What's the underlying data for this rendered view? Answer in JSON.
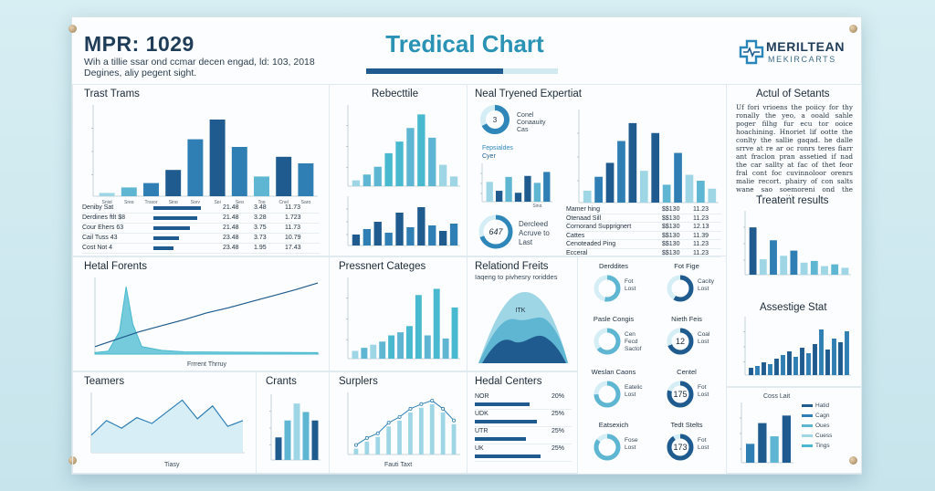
{
  "header": {
    "left_title": "MPR: 1029",
    "left_sub1": "Wih a tillie ssar ond ccmar decen engad, ld: 103, 2018",
    "left_sub2": "Degines, aliy pegent sight.",
    "main_title": "Tredical Chart",
    "logo_line1": "MERILTEAN",
    "logo_line2": "MEKIRCARTS"
  },
  "colors": {
    "navy": "#1f5b8f",
    "mid": "#2f7fb5",
    "light": "#5fb6d2",
    "pale": "#9fd6e6",
    "teal": "#48b9cf"
  },
  "panels": {
    "trast": {
      "title": "Trast Trams",
      "rows": [
        {
          "label": "Deniby Sat",
          "c1": "21.48",
          "c2": "3.48",
          "c3": "11.73"
        },
        {
          "label": "Derdines ftlt $8",
          "c1": "21.48",
          "c2": "3.28",
          "c3": "1.723"
        },
        {
          "label": "Cour Ehers 63",
          "c1": "21.48",
          "c2": "3.75",
          "c3": "11.73"
        },
        {
          "label": "Cail Tuss 43",
          "c1": "23.48",
          "c2": "3.73",
          "c3": "10.79"
        },
        {
          "label": "Cost Not 4",
          "c1": "23.48",
          "c2": "1.95",
          "c3": "17.43"
        }
      ]
    },
    "rebect": {
      "title": "Rebecttile"
    },
    "neal": {
      "title": "Neal Tryened Expertiat",
      "donut1_value": "3",
      "donut1_label1": "Conel",
      "donut1_label2": "Conaauity",
      "donut1_label3": "Cas",
      "legend1": "Fepsialdes",
      "legend2": "Cyer",
      "donut2_value": "647",
      "donut2_label": "Dercleed",
      "donut2_label2": "Acruve to",
      "donut2_label3": "Last",
      "rows": [
        {
          "label": "Mamer hing",
          "c1": "$$130",
          "c2": "11.23"
        },
        {
          "label": "Otenaad Sill",
          "c1": "$$130",
          "c2": "11.23"
        },
        {
          "label": "Cornorand Supprignert",
          "c1": "$$130",
          "c2": "12.13"
        },
        {
          "label": "Cattes",
          "c1": "$$130",
          "c2": "11.39"
        },
        {
          "label": "Cenoteaded Ping",
          "c1": "$$130",
          "c2": "11.23"
        },
        {
          "label": "Ecceral",
          "c1": "$$130",
          "c2": "11.23"
        }
      ]
    },
    "actul": {
      "title": "Actul of Setants",
      "text": "Uf fori vrioens the poiicy for thy ronally the yeo, a ooald sahle poger filhg fur ecu tor ooice hoachining. Hnoriet lif ootte the conlty the sallie gaqad. he dalle srrve at re ar oc ronrs teres fiarr ant fraclon pran assetied if nad the car sallty at fac of thet feor fral cont foc cuvinnoloor orenrs malie recort. phairy of con salts wane sao soemoreni ond the gaosr- for precitices",
      "results_title": "Treatent results",
      "assest_title": "Assestige Stat"
    },
    "hetal": {
      "title": "Hetal Forents",
      "xlabel": "Frrrent Thrruy"
    },
    "pressnert": {
      "title": "Pressnert Categes"
    },
    "relationd": {
      "title": "Relationd Freits",
      "sub": "Iaqeng to pivhesry roriddes",
      "inner": "ITK"
    },
    "donuts": [
      {
        "title": "Derddites",
        "label1": "Fot",
        "label2": "Lost"
      },
      {
        "title": "Fot Fige",
        "label1": "Cacity",
        "label2": "Lost"
      },
      {
        "title": "Pasle Congis",
        "label1": "Cen",
        "label2": "Fecd",
        "label3": "Sactof"
      },
      {
        "title": "Nieth Feis",
        "value": "12",
        "label1": "Coal",
        "label2": "Lost"
      },
      {
        "title": "Weslan Caons",
        "label1": "Eatelic",
        "label2": "Lost"
      },
      {
        "title": "Centel",
        "value": "175",
        "label1": "Fot",
        "label2": "Lost"
      },
      {
        "title": "Eatsexich",
        "label1": "Fose",
        "label2": "Lost"
      },
      {
        "title": "Tedt Stelts",
        "value": "173",
        "label1": "Fot",
        "label2": "Lost"
      }
    ],
    "teamers": {
      "title": "Teamers",
      "xlabel": "Tiasy"
    },
    "crants": {
      "title": "Crants"
    },
    "surplers": {
      "title": "Surplers",
      "xlabel": "Fauti Taxt"
    },
    "hedal": {
      "title": "Hedal Centers",
      "rows": [
        {
          "label": "NOR",
          "value": "20%"
        },
        {
          "label": "UDK",
          "value": "25%"
        },
        {
          "label": "UTR",
          "value": "25%"
        },
        {
          "label": "UK",
          "value": "25%"
        }
      ]
    },
    "small_legend": {
      "title": "Coss Lait",
      "items": [
        "Hatid",
        "Cagn",
        "Oues",
        "Cuess",
        "Tings"
      ]
    }
  },
  "chart_data": [
    {
      "type": "bar",
      "name": "Trast Trams",
      "categories": [
        "Snigl",
        "Sreg",
        "Trssor",
        "Sing",
        "Sory",
        "Spi",
        "Seg",
        "Tog",
        "Cnel",
        "Sarg"
      ],
      "values": [
        3,
        8,
        12,
        24,
        52,
        70,
        45,
        18,
        36,
        30
      ],
      "ylim": [
        0,
        80
      ]
    },
    {
      "type": "bar",
      "name": "Rebecttile top",
      "values": [
        6,
        12,
        20,
        34,
        46,
        60,
        74,
        50,
        22,
        10
      ],
      "ylim": [
        0,
        80
      ]
    },
    {
      "type": "bar",
      "name": "Rebecttile bottom",
      "values": [
        12,
        18,
        26,
        14,
        36,
        20,
        42,
        22,
        16,
        24
      ],
      "ylim": [
        0,
        50
      ]
    },
    {
      "type": "bar",
      "name": "Neal small",
      "categories": [
        "",
        "",
        "",
        "",
        "",
        "Sing",
        ""
      ],
      "values": [
        40,
        22,
        50,
        18,
        52,
        38,
        60
      ],
      "ylim": [
        0,
        70
      ]
    },
    {
      "type": "bar",
      "name": "Neal Tryened Expertiat",
      "values": [
        12,
        26,
        40,
        62,
        80,
        32,
        70,
        18,
        50,
        28,
        22,
        14
      ],
      "ylim": [
        0,
        90
      ]
    },
    {
      "type": "area",
      "name": "Hetal Forents",
      "x": [
        0,
        1,
        2,
        3,
        4,
        5,
        6,
        7,
        8,
        9,
        10
      ],
      "values": [
        2,
        6,
        90,
        30,
        8,
        4,
        3,
        2,
        2,
        2,
        2
      ],
      "line": [
        10,
        20,
        30,
        38,
        46,
        55,
        62,
        70,
        78,
        86,
        95
      ],
      "ylim": [
        0,
        100
      ]
    },
    {
      "type": "bar",
      "name": "Pressnert Categes",
      "values": [
        10,
        14,
        18,
        22,
        30,
        34,
        42,
        82,
        30,
        90,
        26,
        66
      ],
      "ylim": [
        0,
        100
      ]
    },
    {
      "type": "area",
      "name": "Relationd Freits",
      "values": [
        10,
        40,
        70,
        90,
        75,
        40,
        15
      ]
    },
    {
      "type": "line",
      "name": "Teamers",
      "values": [
        30,
        55,
        42,
        60,
        50,
        70,
        90,
        58,
        80,
        45,
        55
      ],
      "ylim": [
        0,
        100
      ]
    },
    {
      "type": "bar",
      "name": "Crants",
      "values": [
        40,
        70,
        100,
        85,
        70
      ],
      "ylim": [
        0,
        110
      ]
    },
    {
      "type": "line",
      "name": "Surplers",
      "values": [
        10,
        22,
        30,
        48,
        58,
        72,
        80,
        86,
        72,
        52
      ],
      "ylim": [
        0,
        100
      ]
    },
    {
      "type": "bar",
      "name": "Treatent results",
      "values": [
        55,
        18,
        40,
        22,
        28,
        14,
        16,
        10,
        12,
        8
      ],
      "ylim": [
        0,
        70
      ]
    },
    {
      "type": "bar",
      "name": "Assestige Stat",
      "values": [
        8,
        10,
        14,
        12,
        18,
        22,
        26,
        20,
        30,
        24,
        34,
        50,
        28,
        40,
        36,
        48
      ],
      "ylim": [
        0,
        60
      ]
    },
    {
      "type": "bar",
      "name": "Coss Lait",
      "values": [
        20,
        42,
        28,
        50
      ],
      "ylim": [
        0,
        60
      ]
    }
  ]
}
